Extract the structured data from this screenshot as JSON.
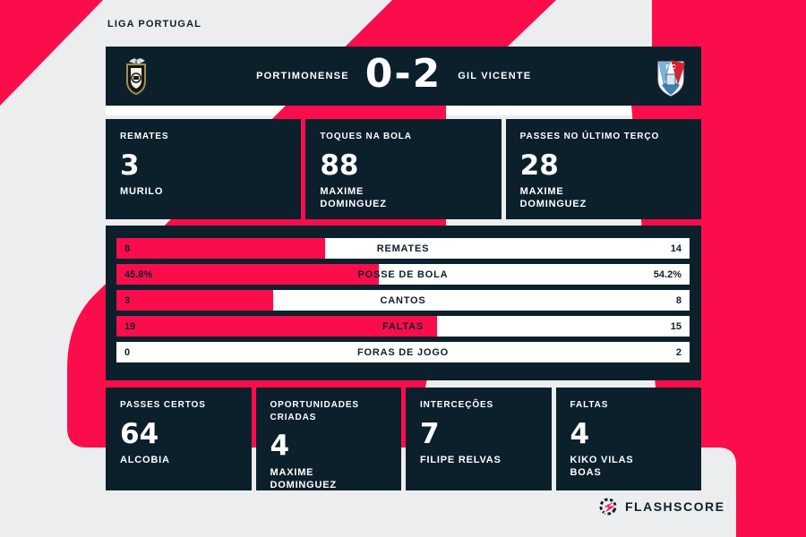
{
  "league": "LIGA PORTUGAL",
  "match": {
    "home_team": "PORTIMONENSE",
    "away_team": "GIL VICENTE",
    "score": "0-2"
  },
  "top_stats": [
    {
      "label": "REMATES",
      "value": "3",
      "player": "MURILO"
    },
    {
      "label": "TOQUES NA BOLA",
      "value": "88",
      "player": "MAXIME DOMINGUEZ"
    },
    {
      "label": "PASSES NO ÚLTIMO TERÇO",
      "value": "28",
      "player": "MAXIME DOMINGUEZ"
    }
  ],
  "comparison_rows": [
    {
      "home": "8",
      "label": "REMATES",
      "away": "14",
      "home_pct": 36.4
    },
    {
      "home": "45.8%",
      "label": "POSSE DE BOLA",
      "away": "54.2%",
      "home_pct": 45.8
    },
    {
      "home": "3",
      "label": "CANTOS",
      "away": "8",
      "home_pct": 27.3
    },
    {
      "home": "19",
      "label": "FALTAS",
      "away": "15",
      "home_pct": 55.9
    },
    {
      "home": "0",
      "label": "FORAS DE JOGO",
      "away": "2",
      "home_pct": 0
    }
  ],
  "bottom_stats": [
    {
      "label": "PASSES CERTOS",
      "value": "64",
      "player": "ALCOBIA"
    },
    {
      "label": "OPORTUNIDADES CRIADAS",
      "value": "4",
      "player": "MAXIME DOMINGUEZ"
    },
    {
      "label": "INTERCEÇÕES",
      "value": "7",
      "player": "FILIPE RELVAS"
    },
    {
      "label": "FALTAS",
      "value": "4",
      "player": "KIKO VILAS BOAS"
    }
  ],
  "footer": {
    "brand": "FLASHSCORE"
  },
  "colors": {
    "pink": "#fb0d4c",
    "dark": "#0c202c",
    "bg": "#ecedee",
    "bar_white": "#ffffff"
  },
  "chart_data": {
    "type": "bar",
    "title": "Portimonense 0-2 Gil Vicente — estatísticas da partida (Liga Portugal)",
    "categories": [
      "REMATES",
      "POSSE DE BOLA",
      "CANTOS",
      "FALTAS",
      "FORAS DE JOGO"
    ],
    "series": [
      {
        "name": "PORTIMONENSE",
        "values": [
          8,
          45.8,
          3,
          19,
          0
        ]
      },
      {
        "name": "GIL VICENTE",
        "values": [
          14,
          54.2,
          8,
          15,
          2
        ]
      }
    ],
    "legend_position": "none",
    "grid": false,
    "layout": "horizontal bipolar bars, home share filled pink from left of full-width white bar"
  }
}
